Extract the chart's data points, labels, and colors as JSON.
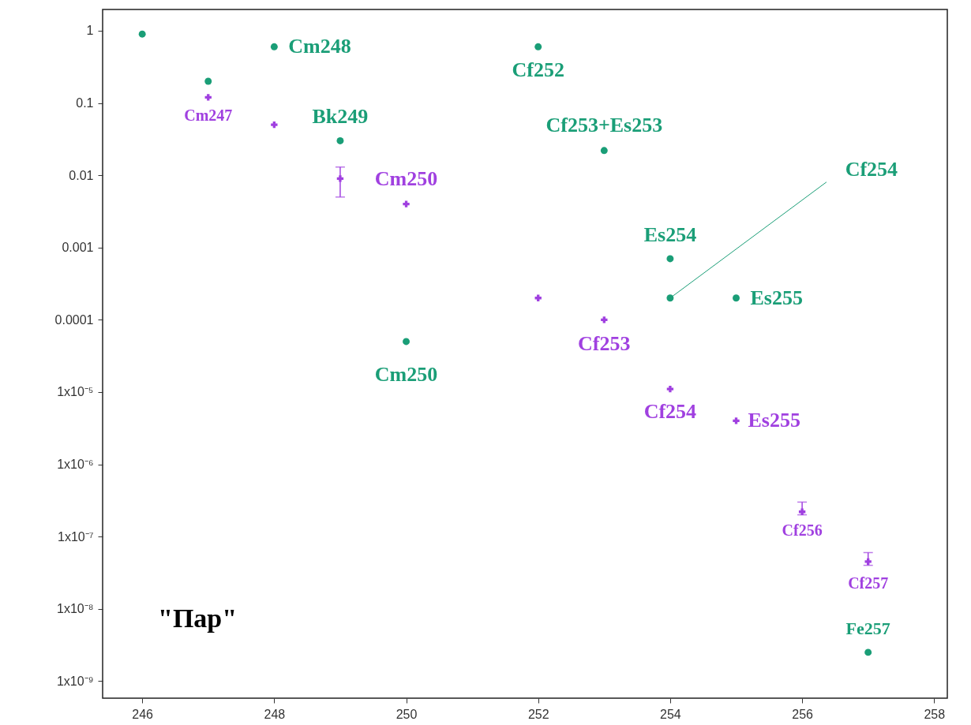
{
  "chart_data": {
    "type": "scatter",
    "log": "y",
    "xlim": [
      245.4,
      258.2
    ],
    "ylim": [
      5.8e-10,
      1.97
    ],
    "xticks": [
      246,
      248,
      250,
      252,
      254,
      256,
      258
    ],
    "yticks": [
      1,
      0.1,
      0.01,
      0.001,
      0.0001,
      {
        "value": 1e-05,
        "label": "1x10⁻⁵"
      },
      {
        "value": 1e-06,
        "label": "1x10⁻⁶"
      },
      {
        "value": 1e-07,
        "label": "1x10⁻⁷"
      },
      {
        "value": 1e-08,
        "label": "1x10⁻⁸"
      },
      {
        "value": 1e-09,
        "label": "1x10⁻⁹"
      }
    ],
    "series": [
      {
        "color": "#1a9e77",
        "marker": "circle",
        "x": [
          246,
          247,
          248,
          249,
          250,
          252,
          253,
          254,
          254,
          255,
          257
        ],
        "values": [
          0.9,
          0.2,
          0.6,
          0.03,
          5e-05,
          0.6,
          0.022,
          0.0007,
          0.0002,
          0.0002,
          2.5e-09
        ]
      },
      {
        "color": "#a040e0",
        "marker": "cross",
        "x": [
          247,
          248,
          249,
          250,
          252,
          253,
          254,
          255,
          256,
          257
        ],
        "values": [
          0.12,
          0.05,
          0.009,
          0.004,
          0.0002,
          0.0001,
          1.1e-05,
          4e-06,
          2.2e-07,
          4.5e-08
        ],
        "errors": [
          null,
          null,
          [
            0.005,
            0.013
          ],
          null,
          null,
          null,
          null,
          null,
          [
            2e-07,
            3e-07
          ],
          [
            4e-08,
            6e-08
          ]
        ]
      }
    ],
    "annotations": [
      {
        "text": "Cm248",
        "x": 248,
        "y": 0.6
      },
      {
        "text": "Cf252",
        "x": 252,
        "y": 0.6
      },
      {
        "text": "Bk249",
        "x": 249,
        "y": 0.03
      },
      {
        "text": "Cf253+Es253",
        "x": 253,
        "y": 0.022
      },
      {
        "text": "Cf254",
        "x": 254,
        "y": 0.0002
      },
      {
        "text": "Es254",
        "x": 254,
        "y": 0.0007
      },
      {
        "text": "Es255",
        "x": 255,
        "y": 0.0002
      },
      {
        "text": "Cm250",
        "x": 250,
        "y": 5e-05
      },
      {
        "text": "Fe257",
        "x": 257,
        "y": 2.5e-09
      },
      {
        "text": "Cm247",
        "x": 247,
        "y": 0.12
      },
      {
        "text": "Cm250",
        "x": 250,
        "y": 0.004
      },
      {
        "text": "Cf253",
        "x": 253,
        "y": 0.0001
      },
      {
        "text": "Cf254",
        "x": 254,
        "y": 1.1e-05
      },
      {
        "text": "Es255",
        "x": 255,
        "y": 4e-06
      },
      {
        "text": "Cf256",
        "x": 256,
        "y": 2.2e-07
      },
      {
        "text": "Cf257",
        "x": 257,
        "y": 4.5e-08
      },
      "\"Пар\""
    ]
  }
}
